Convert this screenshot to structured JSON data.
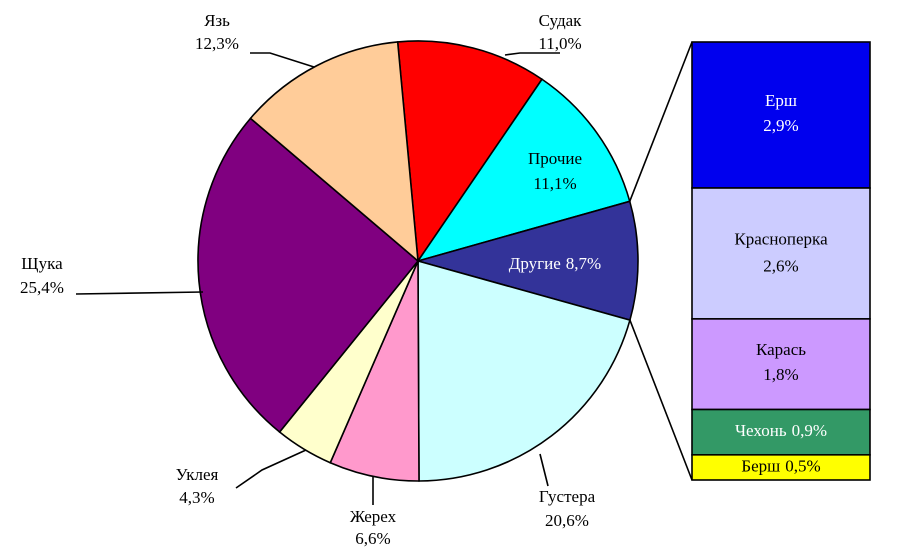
{
  "chart_data": {
    "type": "pie",
    "categories": [
      "Судак",
      "Прочие",
      "Другие",
      "Густера",
      "Жерех",
      "Уклея",
      "Щука",
      "Язь"
    ],
    "values": [
      11.0,
      11.1,
      8.7,
      20.6,
      6.6,
      4.3,
      25.4,
      12.3
    ],
    "value_labels": [
      "11,0%",
      "11,1%",
      "8,7%",
      "20,6%",
      "6,6%",
      "4,3%",
      "25,4%",
      "12,3%"
    ],
    "colors": [
      "#ff0000",
      "#00ffff",
      "#333399",
      "#ccffff",
      "#ff99cc",
      "#ffffcc",
      "#800080",
      "#ffcc99"
    ],
    "breakout": {
      "categories": [
        "Ерш",
        "Красноперка",
        "Карась",
        "Чехонь",
        "Берш"
      ],
      "values": [
        2.9,
        2.6,
        1.8,
        0.9,
        0.5
      ],
      "value_labels": [
        "2,9%",
        "2,6%",
        "1,8%",
        "0,9%",
        "0,5%"
      ],
      "colors": [
        "#0000ee",
        "#ccccff",
        "#cc99ff",
        "#339966",
        "#ffff00"
      ]
    }
  }
}
